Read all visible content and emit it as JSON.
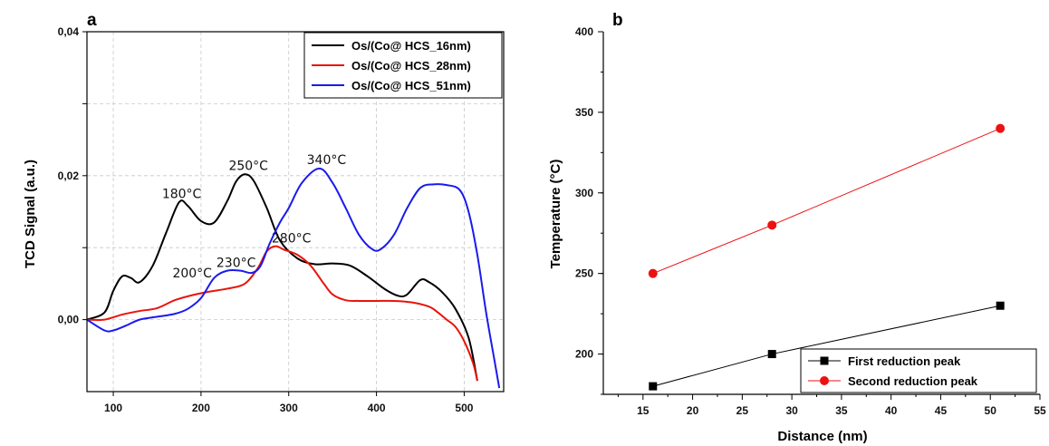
{
  "chart_data": [
    {
      "panel": "a",
      "type": "line",
      "title": "",
      "xlabel": "",
      "ylabel": "TCD Signal (a.u.)",
      "xlim": [
        70,
        545
      ],
      "ylim": [
        -0.01,
        0.04
      ],
      "xticks": [
        100,
        200,
        300,
        400,
        500
      ],
      "yticks": [
        0.0,
        0.02,
        0.04
      ],
      "ytick_labels": [
        "0,00",
        "0,02",
        "0,04"
      ],
      "grid": true,
      "legend_position": "top-right",
      "series": [
        {
          "name": "Os/(Co@ HCS_16nm)",
          "color": "#000000",
          "x": [
            70,
            90,
            100,
            110,
            120,
            130,
            145,
            160,
            175,
            185,
            200,
            215,
            230,
            240,
            250,
            260,
            275,
            290,
            310,
            330,
            350,
            370,
            390,
            410,
            425,
            435,
            450,
            460,
            475,
            490,
            505,
            515
          ],
          "y": [
            0.0,
            0.001,
            0.004,
            0.006,
            0.0058,
            0.0052,
            0.0075,
            0.012,
            0.0163,
            0.0158,
            0.0137,
            0.0135,
            0.0165,
            0.0192,
            0.0202,
            0.0193,
            0.0155,
            0.011,
            0.0085,
            0.0077,
            0.0078,
            0.0075,
            0.006,
            0.0042,
            0.0033,
            0.0035,
            0.0055,
            0.0052,
            0.0038,
            0.0015,
            -0.0025,
            -0.0085
          ]
        },
        {
          "name": "Os/(Co@ HCS_28nm)",
          "color": "#e8140c",
          "x": [
            70,
            90,
            110,
            130,
            150,
            170,
            190,
            210,
            230,
            250,
            265,
            275,
            285,
            295,
            310,
            325,
            340,
            350,
            365,
            380,
            400,
            420,
            440,
            460,
            470,
            480,
            490,
            500,
            510,
            515
          ],
          "y": [
            0.0,
            0.0,
            0.0007,
            0.0012,
            0.0016,
            0.0027,
            0.0034,
            0.0039,
            0.0043,
            0.005,
            0.0072,
            0.0095,
            0.0102,
            0.0097,
            0.009,
            0.0075,
            0.005,
            0.0035,
            0.0027,
            0.0026,
            0.0026,
            0.0026,
            0.0024,
            0.0018,
            0.001,
            0.0,
            -0.001,
            -0.003,
            -0.006,
            -0.0085
          ]
        },
        {
          "name": "Os/(Co@ HCS_51nm)",
          "color": "#1a1aee",
          "x": [
            70,
            90,
            100,
            115,
            130,
            150,
            170,
            185,
            200,
            215,
            230,
            245,
            258,
            268,
            278,
            290,
            300,
            315,
            335,
            350,
            365,
            380,
            395,
            405,
            420,
            435,
            450,
            465,
            480,
            495,
            505,
            515,
            525,
            535,
            540
          ],
          "y": [
            0.0,
            -0.0015,
            -0.0015,
            -0.0008,
            0.0,
            0.0004,
            0.0008,
            0.0015,
            0.003,
            0.0058,
            0.0068,
            0.0068,
            0.0065,
            0.0075,
            0.0105,
            0.0135,
            0.0155,
            0.019,
            0.021,
            0.019,
            0.0155,
            0.0118,
            0.0098,
            0.0098,
            0.0118,
            0.0155,
            0.0183,
            0.0188,
            0.0187,
            0.018,
            0.015,
            0.009,
            0.001,
            -0.006,
            -0.0095
          ]
        }
      ],
      "annotations": [
        {
          "text": "180°C",
          "x": 178,
          "y": 0.0169
        },
        {
          "text": "250°C",
          "x": 254,
          "y": 0.0208
        },
        {
          "text": "340°C",
          "x": 343,
          "y": 0.0216
        },
        {
          "text": "280°C",
          "x": 303,
          "y": 0.0107
        },
        {
          "text": "230°C",
          "x": 240,
          "y": 0.0073
        },
        {
          "text": "200°C",
          "x": 190,
          "y": 0.0059
        }
      ]
    },
    {
      "panel": "b",
      "type": "line",
      "title": "",
      "xlabel": "Distance (nm)",
      "ylabel": "Temperature (°C)",
      "xlim": [
        11,
        55
      ],
      "ylim": [
        175,
        400
      ],
      "xticks": [
        15,
        20,
        25,
        30,
        35,
        40,
        45,
        50,
        55
      ],
      "yticks": [
        200,
        250,
        300,
        350,
        400
      ],
      "grid": false,
      "legend_position": "bottom-right",
      "series": [
        {
          "name": "First reduction peak",
          "color": "#000000",
          "marker": "square",
          "x": [
            16,
            28,
            51
          ],
          "y": [
            180,
            200,
            230
          ]
        },
        {
          "name": "Second reduction peak",
          "color": "#ee1111",
          "marker": "circle",
          "x": [
            16,
            28,
            51
          ],
          "y": [
            250,
            280,
            340
          ]
        }
      ]
    }
  ]
}
